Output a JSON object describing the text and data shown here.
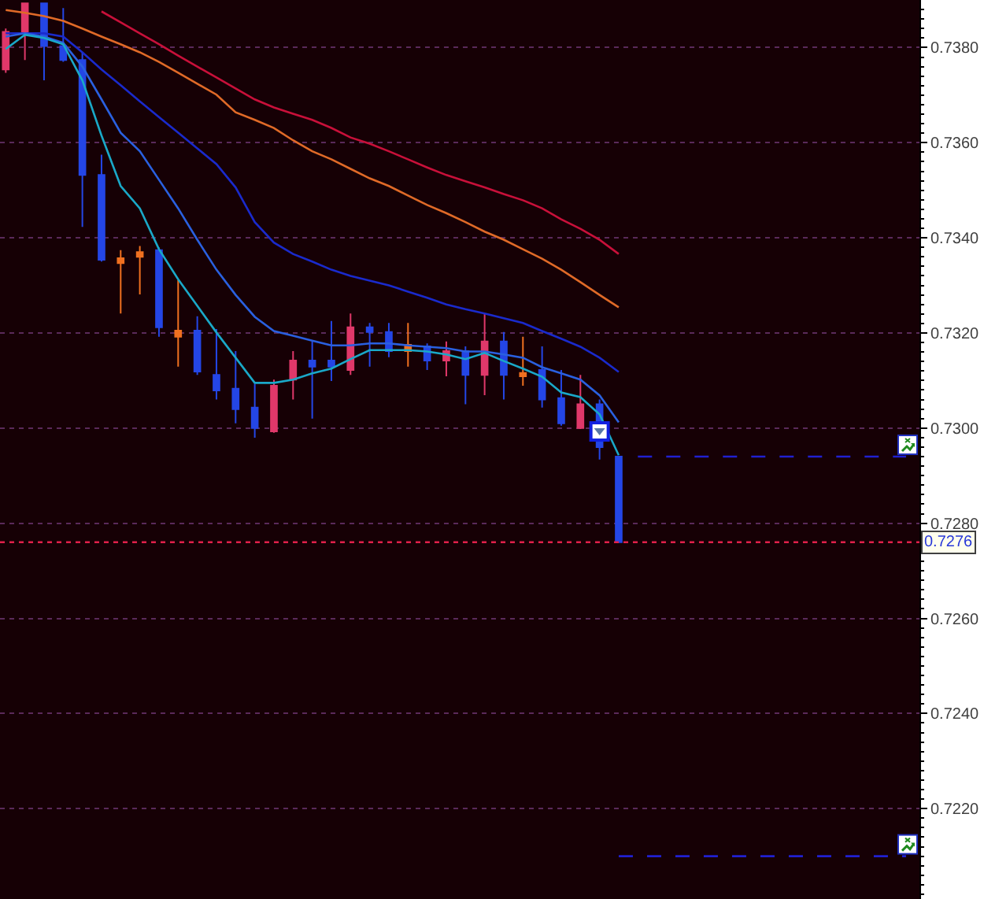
{
  "chart_data": {
    "type": "candlestick",
    "categories": [
      null,
      null,
      null,
      null,
      null,
      null,
      null,
      null,
      null,
      null,
      null,
      null,
      null,
      null,
      null,
      null,
      null,
      null,
      null,
      null,
      null,
      null,
      null,
      null,
      null,
      null,
      null,
      null,
      null,
      null,
      null,
      null,
      null,
      null,
      null,
      null,
      null,
      null,
      null,
      null,
      null,
      null,
      null,
      null,
      null,
      null,
      null,
      null
    ],
    "ohlc": [
      [
        0.73754,
        0.7384,
        0.73747,
        0.73833
      ],
      [
        0.73833,
        0.73893,
        0.73774,
        0.73893
      ],
      [
        0.73893,
        0.73893,
        0.73731,
        0.73803
      ],
      [
        0.73803,
        0.73883,
        0.7377,
        0.73774
      ],
      [
        0.73774,
        0.7379,
        0.73423,
        0.73532
      ],
      [
        0.73532,
        0.73575,
        0.7335,
        0.73354
      ],
      [
        0.73347,
        0.73374,
        0.73241,
        0.73357
      ],
      [
        0.7336,
        0.73383,
        0.73281,
        0.7337
      ],
      [
        0.73374,
        0.7338,
        0.73192,
        0.73212
      ],
      [
        0.73192,
        0.73311,
        0.73129,
        0.73205
      ],
      [
        0.73205,
        0.73235,
        0.73112,
        0.73119
      ],
      [
        0.73112,
        0.73208,
        0.7306,
        0.73079
      ],
      [
        0.73083,
        0.73162,
        0.7301,
        0.7304
      ],
      [
        0.73043,
        0.73093,
        0.7298,
        0.73
      ],
      [
        0.72993,
        0.73102,
        0.7299,
        0.73089
      ],
      [
        0.73102,
        0.73162,
        0.7306,
        0.73142
      ],
      [
        0.73142,
        0.73182,
        0.7302,
        0.73129
      ],
      [
        0.73142,
        0.73225,
        0.73099,
        0.73129
      ],
      [
        0.73122,
        0.73241,
        0.73112,
        0.73212
      ],
      [
        0.73212,
        0.73221,
        0.73129,
        0.73202
      ],
      [
        0.73202,
        0.73221,
        0.73149,
        0.73162
      ],
      [
        0.73162,
        0.73221,
        0.73129,
        0.73175
      ],
      [
        0.73172,
        0.73178,
        0.73122,
        0.73142
      ],
      [
        0.73142,
        0.73182,
        0.73109,
        0.73162
      ],
      [
        0.73162,
        0.73172,
        0.7305,
        0.73112
      ],
      [
        0.73112,
        0.73241,
        0.73069,
        0.73182
      ],
      [
        0.73182,
        0.73202,
        0.7306,
        0.73112
      ],
      [
        0.73109,
        0.73192,
        0.73089,
        0.73116
      ],
      [
        0.73122,
        0.73172,
        0.73043,
        0.7306
      ],
      [
        0.73063,
        0.73122,
        0.73005,
        0.7301
      ],
      [
        0.73,
        0.73112,
        0.72998,
        0.7305
      ],
      [
        0.7305,
        0.7306,
        0.72934,
        0.7296
      ],
      [
        0.7294,
        0.7294,
        0.7276,
        0.7276
      ],
      null,
      null,
      null,
      null,
      null,
      null,
      null,
      null,
      null,
      null,
      null,
      null,
      null,
      null,
      null
    ],
    "colors": [
      "#e0386a",
      "#e0386a",
      "#2446e6",
      "#2446e6",
      "#2446e6",
      "#2446e6",
      "#f07020",
      "#f07020",
      "#2446e6",
      "#f07020",
      "#2446e6",
      "#2446e6",
      "#2446e6",
      "#2446e6",
      "#e0386a",
      "#e0386a",
      "#2446e6",
      "#2446e6",
      "#e0386a",
      "#2446e6",
      "#2446e6",
      "#f07020",
      "#2446e6",
      "#e0386a",
      "#2446e6",
      "#e0386a",
      "#2446e6",
      "#f07020",
      "#2446e6",
      "#2446e6",
      "#e0386a",
      "#2446e6",
      "#2446e6",
      null,
      null,
      null,
      null,
      null,
      null,
      null,
      null,
      null,
      null,
      null,
      null,
      null,
      null,
      null
    ],
    "series": [
      {
        "type": "line",
        "color": "#c8103a",
        "values": [
          null,
          null,
          null,
          null,
          null,
          0.73876,
          0.73853,
          0.7383,
          0.73807,
          0.73783,
          0.7376,
          0.73737,
          0.73714,
          0.73691,
          0.73674,
          0.73661,
          0.73648,
          0.73631,
          0.73611,
          0.73598,
          0.73582,
          0.73565,
          0.73548,
          0.73532,
          0.73519,
          0.73506,
          0.73492,
          0.73479,
          0.73462,
          0.73439,
          0.73419,
          0.73396,
          0.73366,
          null,
          null,
          null,
          null,
          null,
          null,
          null,
          null,
          null,
          null,
          null,
          null,
          null,
          null,
          null
        ]
      },
      {
        "type": "line",
        "color": "#e06a28",
        "values": [
          0.73879,
          0.73873,
          0.73866,
          0.73856,
          0.7384,
          0.73823,
          0.73807,
          0.7379,
          0.7377,
          0.73747,
          0.73724,
          0.73701,
          0.73664,
          0.73648,
          0.73631,
          0.73605,
          0.73582,
          0.73565,
          0.73545,
          0.73525,
          0.73509,
          0.73489,
          0.73469,
          0.73452,
          0.73433,
          0.73413,
          0.73396,
          0.73376,
          0.73356,
          0.73333,
          0.73307,
          0.7328,
          0.73254,
          null,
          null,
          null,
          null,
          null,
          null,
          null,
          null,
          null,
          null,
          null,
          null,
          null,
          null,
          null
        ]
      },
      {
        "type": "line",
        "color": "#1a2acc",
        "values": [
          0.7383,
          0.7383,
          0.7383,
          0.73823,
          0.7379,
          0.73754,
          0.73721,
          0.73687,
          0.73654,
          0.73621,
          0.73588,
          0.73555,
          0.73506,
          0.73433,
          0.7339,
          0.73366,
          0.7335,
          0.73333,
          0.7332,
          0.7331,
          0.733,
          0.73287,
          0.73274,
          0.7326,
          0.7325,
          0.73241,
          0.73231,
          0.73221,
          0.73204,
          0.73188,
          0.73171,
          0.73148,
          0.73118,
          null,
          null,
          null,
          null,
          null,
          null,
          null,
          null,
          null,
          null,
          null,
          null,
          null,
          null,
          null
        ]
      },
      {
        "type": "line",
        "color": "#2a60e0",
        "values": [
          0.73823,
          0.7383,
          0.73823,
          0.7381,
          0.7376,
          0.73691,
          0.73621,
          0.73582,
          0.73522,
          0.73462,
          0.73396,
          0.73333,
          0.7328,
          0.73234,
          0.73204,
          0.73194,
          0.73184,
          0.73174,
          0.73174,
          0.73178,
          0.73178,
          0.73174,
          0.73171,
          0.73168,
          0.73161,
          0.73161,
          0.73155,
          0.73148,
          0.73128,
          0.73115,
          0.73102,
          0.73069,
          0.73012,
          null,
          null,
          null,
          null,
          null,
          null,
          null,
          null,
          null,
          null,
          null,
          null,
          null,
          null,
          null
        ]
      },
      {
        "type": "line",
        "color": "#1aa8c8",
        "values": [
          0.73797,
          0.73827,
          0.7382,
          0.73807,
          0.73731,
          0.73615,
          0.73509,
          0.73462,
          0.73376,
          0.73313,
          0.73257,
          0.73201,
          0.73148,
          0.73095,
          0.73095,
          0.73102,
          0.73115,
          0.73125,
          0.73145,
          0.73164,
          0.73164,
          0.73164,
          0.73161,
          0.73155,
          0.73145,
          0.73158,
          0.73141,
          0.73125,
          0.73108,
          0.73075,
          0.73065,
          0.73029,
          0.72943,
          null,
          null,
          null,
          null,
          null,
          null,
          null,
          null,
          null,
          null,
          null,
          null,
          null,
          null,
          null
        ]
      },
      {
        "type": "line",
        "color": "#2020d0",
        "line_style": "dashed",
        "values": [
          null,
          null,
          null,
          null,
          null,
          null,
          null,
          null,
          null,
          null,
          null,
          null,
          null,
          null,
          null,
          null,
          null,
          null,
          null,
          null,
          null,
          null,
          null,
          null,
          null,
          null,
          null,
          null,
          null,
          null,
          null,
          null,
          null,
          0.7294,
          0.7294,
          0.7294,
          0.7294,
          0.7294,
          0.7294,
          0.7294,
          0.7294,
          0.7294,
          0.7294,
          0.7294,
          0.7294,
          0.7294,
          0.7294,
          0.7294
        ]
      },
      {
        "type": "line",
        "color": "#2020d0",
        "line_style": "dashed",
        "values": [
          null,
          null,
          null,
          null,
          null,
          null,
          null,
          null,
          null,
          null,
          null,
          null,
          null,
          null,
          null,
          null,
          null,
          null,
          null,
          null,
          null,
          null,
          null,
          null,
          null,
          null,
          null,
          null,
          null,
          null,
          null,
          null,
          0.721,
          0.721,
          0.721,
          0.721,
          0.721,
          0.721,
          0.721,
          0.721,
          0.721,
          0.721,
          0.721,
          0.721,
          0.721,
          0.721,
          0.721,
          0.721
        ]
      }
    ],
    "ylim": [
      0.7201,
      0.739
    ],
    "yticks": [
      {
        "value": 0.7202,
        "label": null
      },
      {
        "value": 0.7204,
        "label": null
      },
      {
        "value": 0.7206,
        "label": null
      },
      {
        "value": 0.7208,
        "label": null
      },
      {
        "value": 0.721,
        "label": null
      },
      {
        "value": 0.7212,
        "label": null
      },
      {
        "value": 0.7214,
        "label": null
      },
      {
        "value": 0.7216,
        "label": null
      },
      {
        "value": 0.7218,
        "label": null
      },
      {
        "value": 0.722,
        "label": "0.7220"
      },
      {
        "value": 0.7222,
        "label": null
      },
      {
        "value": 0.7224,
        "label": null
      },
      {
        "value": 0.7226,
        "label": null
      },
      {
        "value": 0.7228,
        "label": null
      },
      {
        "value": 0.723,
        "label": null
      },
      {
        "value": 0.7232,
        "label": null
      },
      {
        "value": 0.7234,
        "label": null
      },
      {
        "value": 0.7236,
        "label": null
      },
      {
        "value": 0.7238,
        "label": null
      },
      {
        "value": 0.724,
        "label": "0.7240"
      },
      {
        "value": 0.7242,
        "label": null
      },
      {
        "value": 0.7244,
        "label": null
      },
      {
        "value": 0.7246,
        "label": null
      },
      {
        "value": 0.7248,
        "label": null
      },
      {
        "value": 0.725,
        "label": null
      },
      {
        "value": 0.7252,
        "label": null
      },
      {
        "value": 0.7254,
        "label": null
      },
      {
        "value": 0.7256,
        "label": null
      },
      {
        "value": 0.7258,
        "label": null
      },
      {
        "value": 0.726,
        "label": "0.7260"
      },
      {
        "value": 0.7262,
        "label": null
      },
      {
        "value": 0.7264,
        "label": null
      },
      {
        "value": 0.7266,
        "label": null
      },
      {
        "value": 0.7268,
        "label": null
      },
      {
        "value": 0.727,
        "label": null
      },
      {
        "value": 0.7272,
        "label": null
      },
      {
        "value": 0.7274,
        "label": null
      },
      {
        "value": 0.7276,
        "label": null
      },
      {
        "value": 0.7278,
        "label": null
      },
      {
        "value": 0.728,
        "label": "0.7280"
      },
      {
        "value": 0.7282,
        "label": null
      },
      {
        "value": 0.7284,
        "label": null
      },
      {
        "value": 0.7286,
        "label": null
      },
      {
        "value": 0.7288,
        "label": null
      },
      {
        "value": 0.729,
        "label": null
      },
      {
        "value": 0.7292,
        "label": null
      },
      {
        "value": 0.7294,
        "label": null
      },
      {
        "value": 0.7296,
        "label": null
      },
      {
        "value": 0.7298,
        "label": null
      },
      {
        "value": 0.73,
        "label": "0.7300"
      },
      {
        "value": 0.7302,
        "label": null
      },
      {
        "value": 0.7304,
        "label": null
      },
      {
        "value": 0.7306,
        "label": null
      },
      {
        "value": 0.7308,
        "label": null
      },
      {
        "value": 0.731,
        "label": null
      },
      {
        "value": 0.7312,
        "label": null
      },
      {
        "value": 0.7314,
        "label": null
      },
      {
        "value": 0.7316,
        "label": null
      },
      {
        "value": 0.7318,
        "label": null
      },
      {
        "value": 0.732,
        "label": "0.7320"
      },
      {
        "value": 0.7322,
        "label": null
      },
      {
        "value": 0.7324,
        "label": null
      },
      {
        "value": 0.7326,
        "label": null
      },
      {
        "value": 0.7328,
        "label": null
      },
      {
        "value": 0.733,
        "label": null
      },
      {
        "value": 0.7332,
        "label": null
      },
      {
        "value": 0.7334,
        "label": null
      },
      {
        "value": 0.7336,
        "label": null
      },
      {
        "value": 0.7338,
        "label": null
      },
      {
        "value": 0.734,
        "label": "0.7340"
      },
      {
        "value": 0.7342,
        "label": null
      },
      {
        "value": 0.7344,
        "label": null
      },
      {
        "value": 0.7346,
        "label": null
      },
      {
        "value": 0.7348,
        "label": null
      },
      {
        "value": 0.735,
        "label": null
      },
      {
        "value": 0.7352,
        "label": null
      },
      {
        "value": 0.7354,
        "label": null
      },
      {
        "value": 0.7356,
        "label": null
      },
      {
        "value": 0.7358,
        "label": null
      },
      {
        "value": 0.736,
        "label": "0.7360"
      },
      {
        "value": 0.7362,
        "label": null
      },
      {
        "value": 0.7364,
        "label": null
      },
      {
        "value": 0.7366,
        "label": null
      },
      {
        "value": 0.7368,
        "label": null
      },
      {
        "value": 0.737,
        "label": null
      },
      {
        "value": 0.7372,
        "label": null
      },
      {
        "value": 0.7374,
        "label": null
      },
      {
        "value": 0.7376,
        "label": null
      },
      {
        "value": 0.7378,
        "label": null
      },
      {
        "value": 0.738,
        "label": "0.7380"
      },
      {
        "value": 0.7382,
        "label": null
      },
      {
        "value": 0.7384,
        "label": null
      },
      {
        "value": 0.7386,
        "label": null
      },
      {
        "value": 0.7388,
        "label": null
      }
    ],
    "grid": "y",
    "tick_labels": "y",
    "ref_lines": [
      {
        "axis": "y",
        "value": 0.7276,
        "label": "0.7276",
        "color": "#e0204a",
        "line_style": "dotted"
      }
    ]
  }
}
